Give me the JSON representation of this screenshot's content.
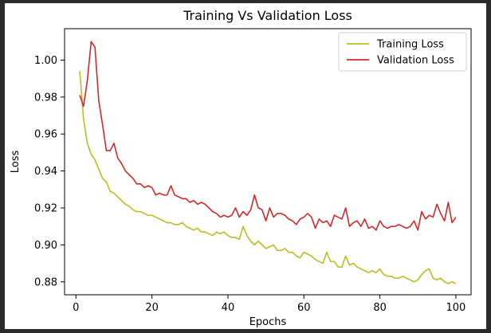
{
  "chart_data": {
    "type": "line",
    "title": "Training Vs Validation Loss",
    "xlabel": "Epochs",
    "ylabel": "Loss",
    "xlim": [
      -3,
      104
    ],
    "ylim": [
      0.873,
      1.017
    ],
    "xticks": [
      0,
      20,
      40,
      60,
      80,
      100
    ],
    "yticks": [
      0.88,
      0.9,
      0.92,
      0.94,
      0.96,
      0.98,
      1.0
    ],
    "ytick_labels": [
      "0.88",
      "0.90",
      "0.92",
      "0.94",
      "0.96",
      "0.98",
      "1.00"
    ],
    "grid": false,
    "legend_position": "top-right",
    "series": [
      {
        "name": "Training Loss",
        "color": "#bcbd22",
        "x": [
          1,
          2,
          3,
          4,
          5,
          6,
          7,
          8,
          9,
          10,
          11,
          12,
          13,
          14,
          15,
          16,
          17,
          18,
          19,
          20,
          21,
          22,
          23,
          24,
          25,
          26,
          27,
          28,
          29,
          30,
          31,
          32,
          33,
          34,
          35,
          36,
          37,
          38,
          39,
          40,
          41,
          42,
          43,
          44,
          45,
          46,
          47,
          48,
          49,
          50,
          51,
          52,
          53,
          54,
          55,
          56,
          57,
          58,
          59,
          60,
          61,
          62,
          63,
          64,
          65,
          66,
          67,
          68,
          69,
          70,
          71,
          72,
          73,
          74,
          75,
          76,
          77,
          78,
          79,
          80,
          81,
          82,
          83,
          84,
          85,
          86,
          87,
          88,
          89,
          90,
          91,
          92,
          93,
          94,
          95,
          96,
          97,
          98,
          99,
          100
        ],
        "values": [
          0.994,
          0.968,
          0.955,
          0.949,
          0.946,
          0.941,
          0.936,
          0.934,
          0.929,
          0.928,
          0.926,
          0.924,
          0.922,
          0.921,
          0.919,
          0.918,
          0.918,
          0.917,
          0.916,
          0.916,
          0.915,
          0.914,
          0.913,
          0.912,
          0.912,
          0.911,
          0.911,
          0.912,
          0.91,
          0.909,
          0.908,
          0.909,
          0.907,
          0.907,
          0.906,
          0.905,
          0.907,
          0.906,
          0.907,
          0.905,
          0.904,
          0.904,
          0.903,
          0.91,
          0.905,
          0.902,
          0.9,
          0.902,
          0.9,
          0.898,
          0.899,
          0.9,
          0.897,
          0.897,
          0.898,
          0.896,
          0.896,
          0.894,
          0.893,
          0.896,
          0.895,
          0.894,
          0.892,
          0.891,
          0.89,
          0.896,
          0.891,
          0.891,
          0.888,
          0.888,
          0.894,
          0.889,
          0.89,
          0.888,
          0.887,
          0.886,
          0.885,
          0.886,
          0.885,
          0.887,
          0.884,
          0.883,
          0.883,
          0.882,
          0.882,
          0.883,
          0.882,
          0.881,
          0.88,
          0.881,
          0.884,
          0.886,
          0.887,
          0.882,
          0.881,
          0.882,
          0.88,
          0.879,
          0.88,
          0.879
        ]
      },
      {
        "name": "Validation Loss",
        "color": "#d62728",
        "x": [
          1,
          2,
          3,
          4,
          5,
          6,
          7,
          8,
          9,
          10,
          11,
          12,
          13,
          14,
          15,
          16,
          17,
          18,
          19,
          20,
          21,
          22,
          23,
          24,
          25,
          26,
          27,
          28,
          29,
          30,
          31,
          32,
          33,
          34,
          35,
          36,
          37,
          38,
          39,
          40,
          41,
          42,
          43,
          44,
          45,
          46,
          47,
          48,
          49,
          50,
          51,
          52,
          53,
          54,
          55,
          56,
          57,
          58,
          59,
          60,
          61,
          62,
          63,
          64,
          65,
          66,
          67,
          68,
          69,
          70,
          71,
          72,
          73,
          74,
          75,
          76,
          77,
          78,
          79,
          80,
          81,
          82,
          83,
          84,
          85,
          86,
          87,
          88,
          89,
          90,
          91,
          92,
          93,
          94,
          95,
          96,
          97,
          98,
          99,
          100
        ],
        "values": [
          0.981,
          0.975,
          0.989,
          1.01,
          1.007,
          0.978,
          0.965,
          0.951,
          0.951,
          0.955,
          0.947,
          0.944,
          0.94,
          0.938,
          0.936,
          0.933,
          0.933,
          0.931,
          0.932,
          0.931,
          0.927,
          0.928,
          0.927,
          0.927,
          0.932,
          0.927,
          0.926,
          0.925,
          0.925,
          0.923,
          0.924,
          0.922,
          0.923,
          0.922,
          0.92,
          0.918,
          0.917,
          0.915,
          0.916,
          0.915,
          0.916,
          0.92,
          0.915,
          0.918,
          0.916,
          0.919,
          0.927,
          0.92,
          0.919,
          0.913,
          0.92,
          0.915,
          0.917,
          0.917,
          0.916,
          0.914,
          0.913,
          0.911,
          0.914,
          0.915,
          0.917,
          0.915,
          0.909,
          0.914,
          0.912,
          0.913,
          0.91,
          0.916,
          0.915,
          0.914,
          0.92,
          0.91,
          0.912,
          0.913,
          0.91,
          0.914,
          0.909,
          0.91,
          0.908,
          0.913,
          0.91,
          0.909,
          0.91,
          0.91,
          0.911,
          0.91,
          0.909,
          0.91,
          0.913,
          0.908,
          0.918,
          0.914,
          0.916,
          0.915,
          0.922,
          0.917,
          0.913,
          0.923,
          0.912,
          0.915
        ]
      }
    ]
  }
}
